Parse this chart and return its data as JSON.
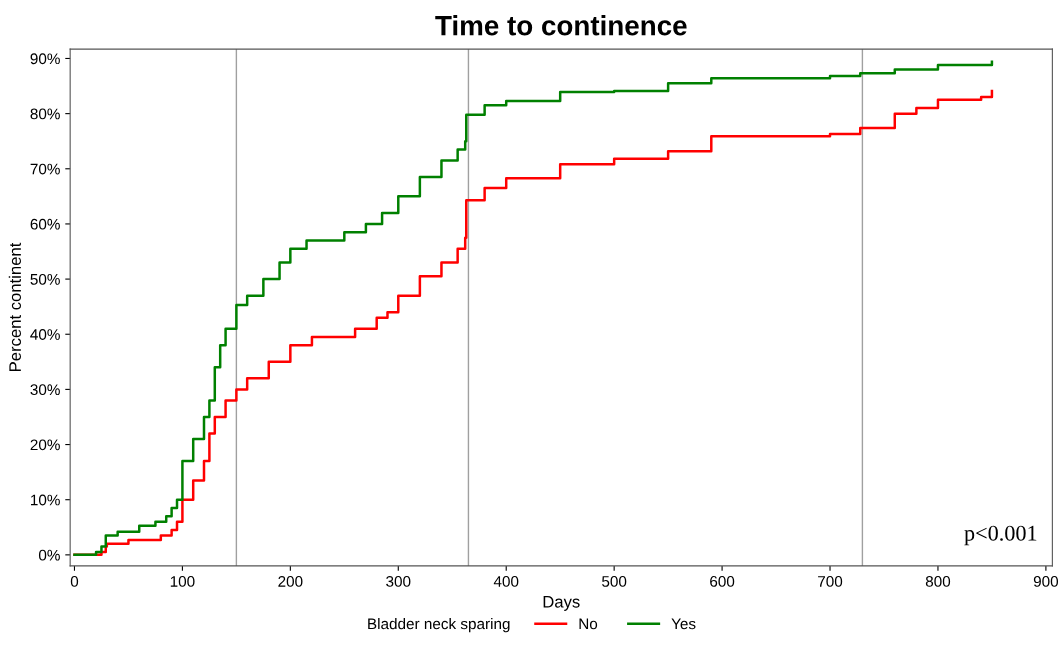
{
  "chart_data": {
    "type": "step",
    "title": "Time to continence",
    "xlabel": "Days",
    "ylabel": "Percent continent",
    "legend_title": "Bladder neck sparing",
    "legend": "bottom",
    "grid": false,
    "line_style": "solid",
    "marker": "none",
    "xlim": [
      -4,
      906
    ],
    "xticks": [
      0,
      100,
      200,
      300,
      400,
      500,
      600,
      700,
      800,
      900
    ],
    "ylim": [
      -2,
      91.7
    ],
    "yticks": [
      {
        "value": 0,
        "label": "0%"
      },
      {
        "value": 10,
        "label": "10%"
      },
      {
        "value": 20,
        "label": "20%"
      },
      {
        "value": 30,
        "label": "30%"
      },
      {
        "value": 40,
        "label": "40%"
      },
      {
        "value": 50,
        "label": "50%"
      },
      {
        "value": 60,
        "label": "60%"
      },
      {
        "value": 70,
        "label": "70%"
      },
      {
        "value": 80,
        "label": "80%"
      },
      {
        "value": 90,
        "label": "90%"
      }
    ],
    "ref_lines": [
      {
        "axis": "x",
        "value": 150,
        "color": "#a0a0a0"
      },
      {
        "axis": "x",
        "value": 365,
        "color": "#a0a0a0"
      },
      {
        "axis": "x",
        "value": 730,
        "color": "#a0a0a0"
      }
    ],
    "annotations": [
      "p<0.001"
    ],
    "series": [
      {
        "name": "No",
        "color": "#ff0000",
        "x": [
          0,
          25,
          29,
          30,
          50,
          80,
          90,
          95,
          100,
          110,
          120,
          125,
          130,
          140,
          150,
          160,
          180,
          200,
          220,
          260,
          280,
          290,
          300,
          320,
          340,
          355,
          362,
          363,
          380,
          400,
          450,
          500,
          550,
          590,
          700,
          728,
          760,
          780,
          800,
          840,
          850
        ],
        "values": [
          0,
          0.5,
          1.5,
          2,
          2.7,
          3.5,
          4.5,
          6,
          10,
          13.5,
          17,
          22,
          25,
          28,
          30,
          32,
          35,
          38,
          39.5,
          41,
          43,
          44,
          47,
          50.5,
          53,
          55.5,
          57.5,
          64.3,
          66.5,
          68.3,
          70.8,
          71.8,
          73.2,
          75.9,
          76.3,
          77.4,
          80,
          81,
          82.5,
          83,
          84.1
        ]
      },
      {
        "name": "Yes",
        "color": "#008000",
        "x": [
          0,
          20,
          25,
          29,
          40,
          60,
          75,
          85,
          90,
          95,
          100,
          110,
          120,
          125,
          130,
          135,
          140,
          150,
          160,
          175,
          190,
          200,
          215,
          250,
          270,
          285,
          300,
          320,
          340,
          355,
          362,
          363,
          380,
          400,
          450,
          500,
          550,
          590,
          700,
          728,
          760,
          800,
          850
        ],
        "values": [
          0,
          0.5,
          1.5,
          3.5,
          4.2,
          5.3,
          6,
          7,
          8.5,
          10,
          17,
          21,
          25,
          28,
          34,
          38,
          41,
          45.3,
          47,
          50,
          53,
          55.5,
          57,
          58.5,
          60,
          62,
          65,
          68.5,
          71.5,
          73.5,
          75,
          79.8,
          81.5,
          82.3,
          83.9,
          84.1,
          85.5,
          86.4,
          86.8,
          87.3,
          88,
          88.8,
          89.4
        ]
      }
    ]
  }
}
